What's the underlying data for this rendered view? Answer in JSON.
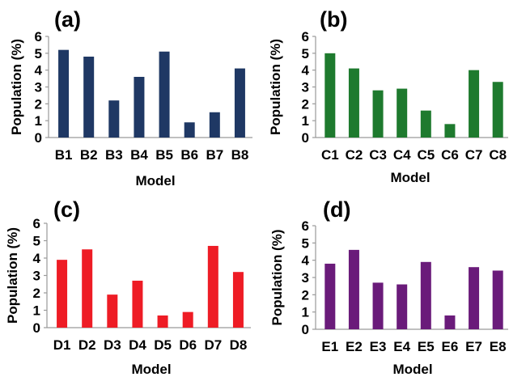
{
  "chart_data": [
    {
      "type": "bar",
      "panel_label": "(a)",
      "categories": [
        "B1",
        "B2",
        "B3",
        "B4",
        "B5",
        "B6",
        "B7",
        "B8"
      ],
      "values": [
        5.2,
        4.8,
        2.2,
        3.6,
        5.1,
        0.9,
        1.5,
        4.1
      ],
      "xlabel": "Model",
      "ylabel": "Population (%)",
      "ylim": [
        0,
        6
      ],
      "yticks": [
        "0",
        "1",
        "2",
        "3",
        "4",
        "5",
        "6"
      ],
      "color": "#1f3864",
      "grid": false
    },
    {
      "type": "bar",
      "panel_label": "(b)",
      "categories": [
        "C1",
        "C2",
        "C3",
        "C4",
        "C5",
        "C6",
        "C7",
        "C8"
      ],
      "values": [
        5.0,
        4.1,
        2.8,
        2.9,
        1.6,
        0.8,
        4.0,
        3.3
      ],
      "xlabel": "Model",
      "ylabel": "Population (%)",
      "ylim": [
        0,
        6
      ],
      "yticks": [
        "0",
        "1",
        "2",
        "3",
        "4",
        "5",
        "6"
      ],
      "color": "#1e7a2e",
      "grid": false
    },
    {
      "type": "bar",
      "panel_label": "(c)",
      "categories": [
        "D1",
        "D2",
        "D3",
        "D4",
        "D5",
        "D6",
        "D7",
        "D8"
      ],
      "values": [
        3.9,
        4.5,
        1.9,
        2.7,
        0.7,
        0.9,
        4.7,
        3.2
      ],
      "xlabel": "Model",
      "ylabel": "Population (%)",
      "ylim": [
        0,
        6
      ],
      "yticks": [
        "0",
        "1",
        "2",
        "3",
        "4",
        "5",
        "6"
      ],
      "color": "#ee1c25",
      "grid": false
    },
    {
      "type": "bar",
      "panel_label": "(d)",
      "categories": [
        "E1",
        "E2",
        "E3",
        "E4",
        "E5",
        "E6",
        "E7",
        "E8"
      ],
      "values": [
        3.8,
        4.6,
        2.7,
        2.6,
        3.9,
        0.8,
        3.6,
        3.4
      ],
      "xlabel": "Model",
      "ylabel": "Population (%)",
      "ylim": [
        0,
        6
      ],
      "yticks": [
        "0",
        "1",
        "2",
        "3",
        "4",
        "5",
        "6"
      ],
      "color": "#6a1b7a",
      "grid": false
    }
  ]
}
